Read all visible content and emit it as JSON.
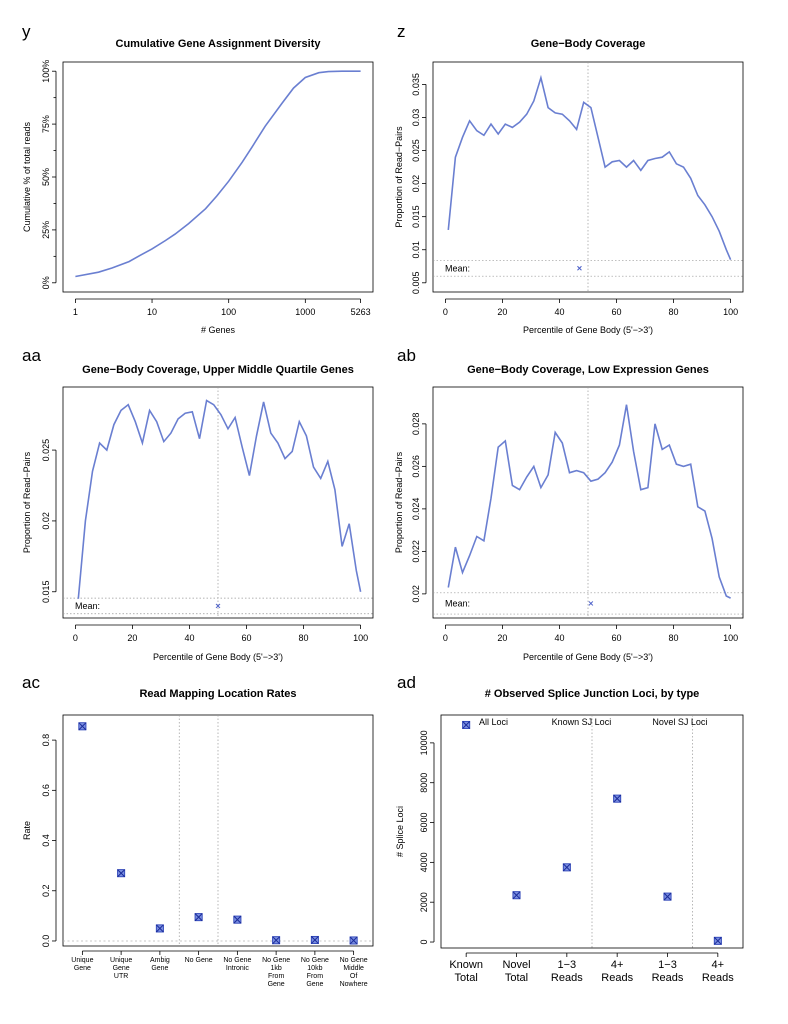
{
  "chart_data": [
    {
      "id": "y",
      "type": "line",
      "panel_label": "y",
      "title": "Cumulative Gene Assignment Diversity",
      "xlabel": "# Genes",
      "ylabel": "Cumulative % of total reads",
      "xscale": "log",
      "xlim": [
        1,
        5263
      ],
      "ylim": [
        0,
        100
      ],
      "xticks": [
        1,
        10,
        100,
        1000,
        5263
      ],
      "xtick_labels": [
        "1",
        "10",
        "100",
        "1000",
        "5263"
      ],
      "yticks": [
        0,
        25,
        50,
        75,
        100
      ],
      "ytick_labels": [
        "0%",
        "25%",
        "50%",
        "75%",
        "100%"
      ],
      "ytick_rotated": true,
      "ytick_minor": [
        12.5,
        37.5,
        62.5,
        87.5
      ],
      "x": [
        1,
        2,
        3,
        5,
        7,
        10,
        15,
        20,
        30,
        50,
        70,
        100,
        150,
        200,
        300,
        500,
        700,
        1000,
        1500,
        2000,
        3000,
        5263
      ],
      "y": [
        3,
        5,
        7,
        10,
        13,
        16,
        20,
        23,
        28,
        35,
        41,
        48,
        57,
        64,
        74,
        85,
        92,
        97,
        99.3,
        99.8,
        100,
        100
      ]
    },
    {
      "id": "z",
      "type": "line",
      "panel_label": "z",
      "title": "Gene−Body Coverage",
      "xlabel": "Percentile of Gene Body (5'−>3')",
      "ylabel": "Proportion of Read−Pairs",
      "xlim": [
        0,
        100
      ],
      "ylim": [
        0.005,
        0.037
      ],
      "xticks": [
        0,
        20,
        40,
        60,
        80,
        100
      ],
      "xtick_labels": [
        "0",
        "20",
        "40",
        "60",
        "80",
        "100"
      ],
      "yticks": [
        0.005,
        0.01,
        0.015,
        0.02,
        0.025,
        0.03,
        0.035
      ],
      "ytick_labels": [
        "0.005",
        "0.01",
        "0.015",
        "0.02",
        "0.025",
        "0.03",
        "0.035"
      ],
      "x": [
        1,
        3.5,
        6,
        8.5,
        11,
        13.5,
        16,
        18.5,
        21,
        23.5,
        26,
        28.5,
        31,
        33.5,
        36,
        38.5,
        41,
        43.5,
        46,
        48.5,
        51,
        53.5,
        56,
        58.5,
        61,
        63.5,
        66,
        68.5,
        71,
        73.5,
        76,
        78.5,
        81,
        83.5,
        86,
        88.5,
        91,
        93.5,
        96,
        98.5,
        100
      ],
      "y": [
        0.013,
        0.024,
        0.027,
        0.0295,
        0.028,
        0.0273,
        0.029,
        0.0275,
        0.029,
        0.0285,
        0.0293,
        0.0305,
        0.0325,
        0.036,
        0.0315,
        0.0307,
        0.0305,
        0.0295,
        0.0282,
        0.0323,
        0.0315,
        0.027,
        0.0225,
        0.0233,
        0.0235,
        0.0225,
        0.0235,
        0.022,
        0.0235,
        0.0238,
        0.024,
        0.0248,
        0.023,
        0.0225,
        0.0208,
        0.0182,
        0.0168,
        0.015,
        0.0128,
        0.01,
        0.0085
      ],
      "mean_label": "Mean:",
      "mean_point": [
        47,
        0.0072
      ],
      "mean_line_y": 0.0084,
      "median_line_x": 50
    },
    {
      "id": "aa",
      "type": "line",
      "panel_label": "aa",
      "title": "Gene−Body Coverage, Upper Middle Quartile Genes",
      "xlabel": "Percentile of Gene Body (5'−>3')",
      "ylabel": "Proportion of Read−Pairs",
      "xlim": [
        0,
        100
      ],
      "ylim": [
        0.0138,
        0.0288
      ],
      "xticks": [
        0,
        20,
        40,
        60,
        80,
        100
      ],
      "xtick_labels": [
        "0",
        "20",
        "40",
        "60",
        "80",
        "100"
      ],
      "yticks": [
        0.015,
        0.02,
        0.025
      ],
      "ytick_labels": [
        "0.015",
        "0.02",
        "0.025"
      ],
      "x": [
        1,
        3.5,
        6,
        8.5,
        11,
        13.5,
        16,
        18.5,
        21,
        23.5,
        26,
        28.5,
        31,
        33.5,
        36,
        38.5,
        41,
        43.5,
        46,
        48.5,
        51,
        53.5,
        56,
        58.5,
        61,
        63.5,
        66,
        68.5,
        71,
        73.5,
        76,
        78.5,
        81,
        83.5,
        86,
        88.5,
        91,
        93.5,
        96,
        98.5,
        100
      ],
      "y": [
        0.0145,
        0.02,
        0.0235,
        0.0255,
        0.025,
        0.0268,
        0.0278,
        0.0282,
        0.027,
        0.0255,
        0.0278,
        0.027,
        0.0256,
        0.0262,
        0.0272,
        0.0276,
        0.0277,
        0.0258,
        0.0285,
        0.0282,
        0.0275,
        0.0265,
        0.0273,
        0.0252,
        0.0232,
        0.026,
        0.0284,
        0.0262,
        0.0255,
        0.0244,
        0.0249,
        0.027,
        0.026,
        0.0238,
        0.023,
        0.0242,
        0.0222,
        0.0182,
        0.0198,
        0.0165,
        0.015
      ],
      "mean_label": "Mean:",
      "mean_point": [
        50,
        0.014
      ],
      "mean_line_y": 0.01455,
      "median_line_x": 50
    },
    {
      "id": "ab",
      "type": "line",
      "panel_label": "ab",
      "title": "Gene−Body Coverage, Low Expression Genes",
      "xlabel": "Percentile of Gene Body (5'−>3')",
      "ylabel": "Proportion of Read−Pairs",
      "xlim": [
        0,
        100
      ],
      "ylim": [
        0.0193,
        0.0293
      ],
      "xticks": [
        0,
        20,
        40,
        60,
        80,
        100
      ],
      "xtick_labels": [
        "0",
        "20",
        "40",
        "60",
        "80",
        "100"
      ],
      "yticks": [
        0.02,
        0.022,
        0.024,
        0.026,
        0.028
      ],
      "ytick_labels": [
        "0.02",
        "0.022",
        "0.024",
        "0.026",
        "0.028"
      ],
      "x": [
        1,
        3.5,
        6,
        8.5,
        11,
        13.5,
        16,
        18.5,
        21,
        23.5,
        26,
        28.5,
        31,
        33.5,
        36,
        38.5,
        41,
        43.5,
        46,
        48.5,
        51,
        53.5,
        56,
        58.5,
        61,
        63.5,
        66,
        68.5,
        71,
        73.5,
        76,
        78.5,
        81,
        83.5,
        86,
        88.5,
        91,
        93.5,
        96,
        98.5,
        100
      ],
      "y": [
        0.0203,
        0.0222,
        0.021,
        0.0218,
        0.0227,
        0.0225,
        0.0245,
        0.0269,
        0.0272,
        0.0251,
        0.0249,
        0.0255,
        0.026,
        0.025,
        0.0256,
        0.0276,
        0.0271,
        0.0257,
        0.0258,
        0.0257,
        0.0253,
        0.0254,
        0.0257,
        0.0262,
        0.027,
        0.0289,
        0.0267,
        0.0249,
        0.025,
        0.028,
        0.0268,
        0.027,
        0.0261,
        0.026,
        0.0261,
        0.0241,
        0.0239,
        0.0226,
        0.0208,
        0.0199,
        0.0198
      ],
      "mean_label": "Mean:",
      "mean_point": [
        51,
        0.01955
      ],
      "mean_line_y": 0.02005,
      "median_line_x": 50
    },
    {
      "id": "ac",
      "type": "scatter",
      "panel_label": "ac",
      "title": "Read Mapping Location Rates",
      "xlabel": "",
      "ylabel": "Rate",
      "ylim": [
        -0.02,
        0.9
      ],
      "yticks": [
        0,
        0.2,
        0.4,
        0.6,
        0.8
      ],
      "ytick_labels": [
        "0.0",
        "0.2",
        "0.4",
        "0.6",
        "0.8"
      ],
      "categories": [
        [
          "Unique",
          "Gene"
        ],
        [
          "Unique",
          "Gene",
          "UTR"
        ],
        [
          "Ambig",
          "Gene"
        ],
        [
          "No Gene"
        ],
        [
          "No Gene",
          "Intronic"
        ],
        [
          "No Gene",
          "1kb",
          "From",
          "Gene"
        ],
        [
          "No Gene",
          "10kb",
          "From",
          "Gene"
        ],
        [
          "No Gene",
          "Middle",
          "Of",
          "Nowhere"
        ]
      ],
      "values": [
        0.855,
        0.27,
        0.05,
        0.095,
        0.085,
        0.003,
        0.004,
        0.002
      ],
      "separators_after": [
        2,
        3
      ],
      "zero_line": true
    },
    {
      "id": "ad",
      "type": "scatter",
      "panel_label": "ad",
      "title": "# Observed Splice Junction Loci, by type",
      "xlabel": "",
      "ylabel": "# Splice Loci",
      "ylim": [
        -300,
        11400
      ],
      "yticks": [
        0,
        2000,
        4000,
        6000,
        8000,
        10000
      ],
      "ytick_labels": [
        "0",
        "2000",
        "4000",
        "6000",
        "8000",
        "10000"
      ],
      "categories": [
        [
          "Known",
          "Total"
        ],
        [
          "Novel",
          "Total"
        ],
        [
          "1−3",
          "Reads"
        ],
        [
          "4+",
          "Reads"
        ],
        [
          "1−3",
          "Reads"
        ],
        [
          "4+",
          "Reads"
        ]
      ],
      "values": [
        10900,
        2350,
        3750,
        7200,
        2280,
        60
      ],
      "separators_after": [
        2,
        4
      ],
      "group_labels": [
        {
          "text": "All Loci",
          "after": 0
        },
        {
          "text": "Known SJ Loci",
          "after": 2
        },
        {
          "text": "Novel SJ Loci",
          "after": 4
        }
      ]
    }
  ]
}
